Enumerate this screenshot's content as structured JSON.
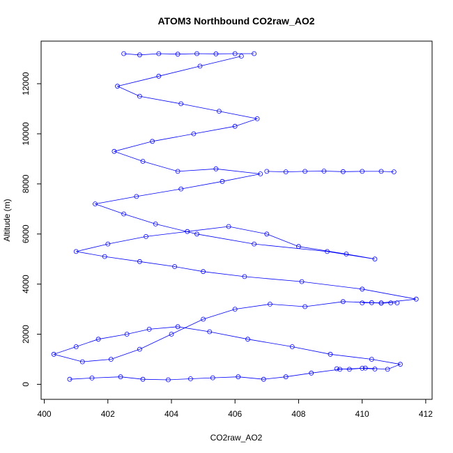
{
  "chart_data": {
    "type": "scatter",
    "title": "ATOM3 Northbound CO2raw_AO2",
    "xlabel": "CO2raw_AO2",
    "ylabel": "Altitude (m)",
    "xlim": [
      400,
      412
    ],
    "ylim": [
      0,
      13500
    ],
    "x_ticks": [
      400,
      402,
      404,
      406,
      408,
      410,
      412
    ],
    "y_ticks": [
      0,
      2000,
      4000,
      6000,
      8000,
      10000,
      12000
    ],
    "grid": false,
    "legend": "none",
    "series": [
      {
        "marker": "open-circle",
        "connected": true,
        "color": "#0000ff",
        "x": [
          400.8,
          401.5,
          402.4,
          403.1,
          403.9,
          404.6,
          405.3,
          406.1,
          406.9,
          407.6,
          408.4,
          409.3,
          410.1,
          410.8,
          411.2,
          410.3,
          409.0,
          407.8,
          406.4,
          405.2,
          404.2,
          403.3,
          402.6,
          401.7,
          401.0,
          400.3,
          401.2,
          402.1,
          403.0,
          404.0,
          405.0,
          406.0,
          407.1,
          408.2,
          409.4,
          410.6,
          411.7,
          410.0,
          408.1,
          406.3,
          405.0,
          404.1,
          403.0,
          401.9,
          401.0,
          402.0,
          403.2,
          404.5,
          405.8,
          407.0,
          408.0,
          409.5,
          410.4,
          408.9,
          406.6,
          404.8,
          403.5,
          402.5,
          401.6,
          402.9,
          404.3,
          405.6,
          406.8,
          405.4,
          404.2,
          403.1,
          402.2,
          403.4,
          404.7,
          406.0,
          406.7,
          405.5,
          404.3,
          403.0,
          402.3,
          403.6,
          404.9,
          406.2
        ],
        "y": [
          200,
          250,
          300,
          200,
          180,
          220,
          260,
          300,
          200,
          300,
          450,
          600,
          650,
          600,
          800,
          1000,
          1200,
          1500,
          1800,
          2100,
          2300,
          2200,
          2000,
          1800,
          1500,
          1200,
          900,
          1000,
          1400,
          2000,
          2600,
          3000,
          3200,
          3100,
          3300,
          3250,
          3400,
          3800,
          4100,
          4300,
          4500,
          4700,
          4900,
          5100,
          5300,
          5600,
          5900,
          6100,
          6300,
          6000,
          5500,
          5200,
          5000,
          5300,
          5600,
          6000,
          6400,
          6800,
          7200,
          7500,
          7800,
          8100,
          8400,
          8600,
          8500,
          8900,
          9300,
          9700,
          10000,
          10300,
          10600,
          10900,
          11200,
          11500,
          11900,
          12300,
          12700,
          13100
        ]
      },
      {
        "marker": "open-circle",
        "connected": true,
        "color": "#0000ff",
        "name_shown": false,
        "x": [
          402.5,
          403.0,
          403.6,
          404.2,
          404.8,
          405.4,
          406.0,
          406.6
        ],
        "y": [
          13200,
          13150,
          13200,
          13180,
          13200,
          13190,
          13200,
          13200
        ]
      },
      {
        "marker": "open-circle",
        "connected": true,
        "color": "#0000ff",
        "x": [
          407.0,
          407.6,
          408.2,
          408.8,
          409.4,
          410.0,
          410.6,
          411.0
        ],
        "y": [
          8500,
          8480,
          8500,
          8510,
          8490,
          8500,
          8500,
          8480
        ]
      },
      {
        "marker": "open-circle",
        "connected": true,
        "color": "#0000ff",
        "x": [
          410.0,
          410.3,
          410.6,
          410.9,
          411.1
        ],
        "y": [
          3250,
          3260,
          3240,
          3250,
          3250
        ]
      },
      {
        "marker": "open-circle",
        "connected": true,
        "color": "#0000ff",
        "x": [
          409.2,
          409.6,
          410.0,
          410.4
        ],
        "y": [
          620,
          600,
          640,
          610
        ]
      }
    ]
  }
}
